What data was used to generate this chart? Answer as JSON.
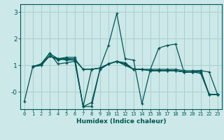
{
  "xlabel": "Humidex (Indice chaleur)",
  "bg_color": "#cce8e8",
  "grid_color": "#aacfcf",
  "line_color": "#005555",
  "xlim": [
    -0.5,
    23.5
  ],
  "ylim": [
    -0.65,
    3.3
  ],
  "lines": [
    [
      -0.35,
      0.95,
      1.05,
      1.45,
      1.05,
      1.1,
      1.15,
      -0.55,
      0.85,
      0.9,
      1.75,
      2.95,
      1.25,
      1.2,
      -0.45,
      0.85,
      1.65,
      1.75,
      1.8,
      0.75,
      0.75,
      0.7,
      -0.1,
      -0.1
    ],
    [
      null,
      0.95,
      1.05,
      1.45,
      1.25,
      1.2,
      1.2,
      -0.55,
      -0.4,
      0.85,
      1.05,
      1.15,
      1.1,
      0.85,
      0.85,
      0.85,
      0.85,
      0.85,
      0.85,
      0.8,
      0.8,
      0.8,
      0.75,
      -0.1
    ],
    [
      null,
      0.95,
      1.05,
      1.35,
      1.25,
      1.3,
      1.3,
      -0.55,
      -0.55,
      0.85,
      1.05,
      1.15,
      1.05,
      0.85,
      0.85,
      0.8,
      0.8,
      0.8,
      0.8,
      0.75,
      0.75,
      0.8,
      -0.1,
      -0.1
    ],
    [
      null,
      0.95,
      1.0,
      1.35,
      1.25,
      1.25,
      1.2,
      0.85,
      0.85,
      0.9,
      1.05,
      1.15,
      1.05,
      0.85,
      0.85,
      0.8,
      0.8,
      0.8,
      0.8,
      0.75,
      0.75,
      0.75,
      -0.1,
      -0.1
    ],
    [
      null,
      0.95,
      1.0,
      1.35,
      1.2,
      1.25,
      1.25,
      0.85,
      0.85,
      0.9,
      1.05,
      1.15,
      1.0,
      0.85,
      0.85,
      0.8,
      0.8,
      0.8,
      0.8,
      0.75,
      0.75,
      0.8,
      -0.1,
      -0.1
    ]
  ]
}
